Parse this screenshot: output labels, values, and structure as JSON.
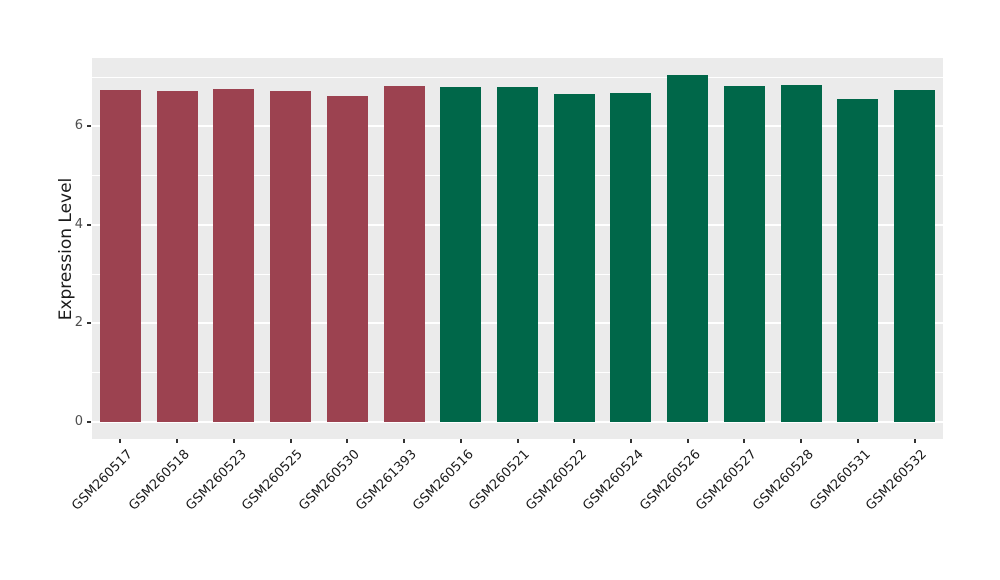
{
  "chart_data": {
    "type": "bar",
    "title": "",
    "xlabel": "",
    "ylabel": "Expression Level",
    "legend": "none",
    "grid": "on",
    "panel_background": "#EBEBEB",
    "gridline_color": "#FFFFFF",
    "figure_background": "#FFFFFF",
    "ylim": [
      0,
      7.05
    ],
    "ylim_display": [
      -0.35,
      7.39
    ],
    "yticks_major": [
      0,
      2,
      4,
      6
    ],
    "yticks_minor": [
      1,
      3,
      5,
      7
    ],
    "group_colors": {
      "group1": "#9C4250",
      "group2": "#006749"
    },
    "categories": [
      "GSM260517",
      "GSM260518",
      "GSM260523",
      "GSM260525",
      "GSM260530",
      "GSM261393",
      "GSM260516",
      "GSM260521",
      "GSM260522",
      "GSM260524",
      "GSM260526",
      "GSM260527",
      "GSM260528",
      "GSM260531",
      "GSM260532"
    ],
    "bars": [
      {
        "label": "GSM260517",
        "value": 6.73,
        "group": "group1"
      },
      {
        "label": "GSM260518",
        "value": 6.71,
        "group": "group1"
      },
      {
        "label": "GSM260523",
        "value": 6.77,
        "group": "group1"
      },
      {
        "label": "GSM260525",
        "value": 6.72,
        "group": "group1"
      },
      {
        "label": "GSM260530",
        "value": 6.61,
        "group": "group1"
      },
      {
        "label": "GSM261393",
        "value": 6.82,
        "group": "group1"
      },
      {
        "label": "GSM260516",
        "value": 6.8,
        "group": "group2"
      },
      {
        "label": "GSM260521",
        "value": 6.8,
        "group": "group2"
      },
      {
        "label": "GSM260522",
        "value": 6.65,
        "group": "group2"
      },
      {
        "label": "GSM260524",
        "value": 6.67,
        "group": "group2"
      },
      {
        "label": "GSM260526",
        "value": 7.05,
        "group": "group2"
      },
      {
        "label": "GSM260527",
        "value": 6.82,
        "group": "group2"
      },
      {
        "label": "GSM260528",
        "value": 6.85,
        "group": "group2"
      },
      {
        "label": "GSM260531",
        "value": 6.55,
        "group": "group2"
      },
      {
        "label": "GSM260532",
        "value": 6.75,
        "group": "group2"
      }
    ]
  }
}
